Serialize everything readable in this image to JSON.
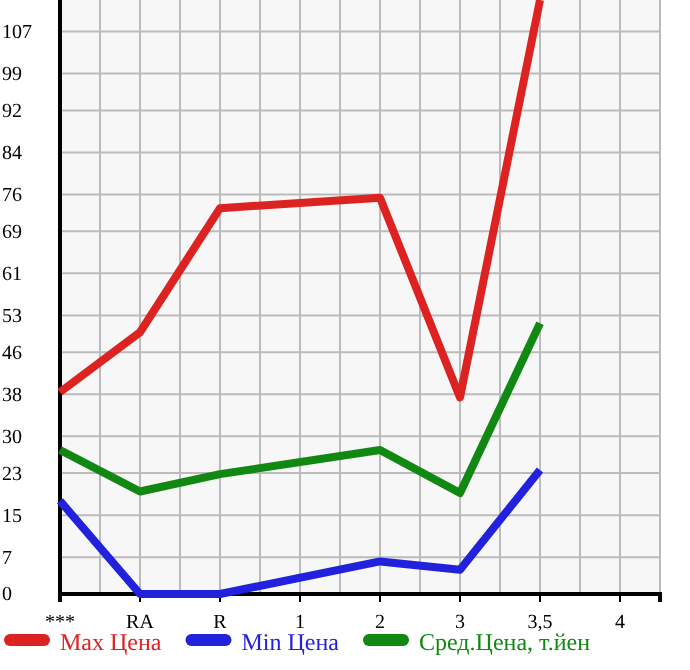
{
  "chart_data": {
    "type": "line",
    "categories": [
      "***",
      "RA",
      "R",
      "1",
      "2",
      "3",
      "3,5",
      "4"
    ],
    "series": [
      {
        "name": "Max Цена",
        "color": "#dd2222",
        "values": [
          38.4,
          49.8,
          73.4,
          null,
          75.4,
          37.4,
          113,
          null
        ]
      },
      {
        "name": "Min Цена",
        "color": "#2222dd",
        "values": [
          17.7,
          0,
          0,
          null,
          6.2,
          4.6,
          23.6,
          null
        ]
      },
      {
        "name": "Сред.Цена, т.йен",
        "color": "#118811",
        "values": [
          27.4,
          19.5,
          22.8,
          null,
          27.4,
          19.2,
          51.5,
          null
        ]
      }
    ],
    "ylim": [
      0,
      113
    ],
    "yticks": [
      0,
      7,
      15,
      23,
      30,
      38,
      46,
      53,
      61,
      69,
      76,
      84,
      92,
      99,
      107
    ],
    "grid": true,
    "legend": "bottom",
    "marker": "none",
    "line_style": "solid"
  }
}
